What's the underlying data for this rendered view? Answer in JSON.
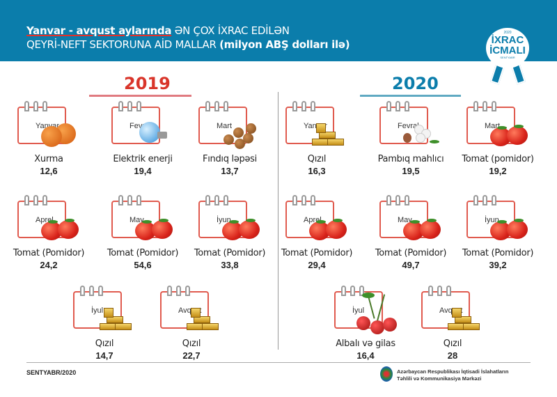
{
  "header": {
    "title_highlight": "Yanvar - avqust  aylarında",
    "title_rest": " ƏN ÇOX İXRAC EDİLƏN",
    "subtitle": "QEYRİ-NEFT SEKTORUNA AİD MALLAR ",
    "subtitle_bold": "(milyon ABŞ dolları ilə)"
  },
  "badge": {
    "year": "2020",
    "line1": "İXRAC",
    "line2": "İCMALI",
    "month": "SENTYABR"
  },
  "colors": {
    "header": "#0b7dab",
    "y2019": "#d9352a",
    "y2020": "#0b7dab"
  },
  "y2019": {
    "label": "2019",
    "items": [
      {
        "month": "Yanvar",
        "product": "Xurma",
        "value": "12,6",
        "icon": "persimmon"
      },
      {
        "month": "Fevral",
        "product": "Elektrik enerji",
        "value": "19,4",
        "icon": "light-bulb"
      },
      {
        "month": "Mart",
        "product": "Fındıq ləpəsi",
        "value": "13,7",
        "icon": "hazelnut"
      },
      {
        "month": "Aprel",
        "product": "Tomat (Pomidor)",
        "value": "24,2",
        "icon": "tomato"
      },
      {
        "month": "May",
        "product": "Tomat (Pomidor)",
        "value": "54,6",
        "icon": "tomato"
      },
      {
        "month": "İyun",
        "product": "Tomat (Pomidor)",
        "value": "33,8",
        "icon": "tomato"
      },
      {
        "month": "İyul",
        "product": "Qızıl",
        "value": "14,7",
        "icon": "gold"
      },
      {
        "month": "Avqust",
        "product": "Qızıl",
        "value": "22,7",
        "icon": "gold"
      }
    ]
  },
  "y2020": {
    "label": "2020",
    "items": [
      {
        "month": "Yanvar",
        "product": "Qızıl",
        "value": "16,3",
        "icon": "gold"
      },
      {
        "month": "Fevral",
        "product": "Pambıq mahlıcı",
        "value": "19,5",
        "icon": "cotton"
      },
      {
        "month": "Mart",
        "product": "Tomat (pomidor)",
        "value": "19,2",
        "icon": "tomato"
      },
      {
        "month": "Aprel",
        "product": "Tomat (Pomidor)",
        "value": "29,4",
        "icon": "tomato"
      },
      {
        "month": "May",
        "product": "Tomat (Pomidor)",
        "value": "49,7",
        "icon": "tomato"
      },
      {
        "month": "İyun",
        "product": "Tomat (Pomidor)",
        "value": "39,2",
        "icon": "tomato"
      },
      {
        "month": "İyul",
        "product": "Albalı və gilas",
        "value": "16,4",
        "icon": "cherry"
      },
      {
        "month": "Avqust",
        "product": "Qızıl",
        "value": "28",
        "icon": "gold"
      }
    ]
  },
  "footer": {
    "date": "SENTYABR/2020",
    "org_line1": "Azərbaycan Respublikası İqtisadi İslahatların",
    "org_line2": "Təhlili və Kommunikasiya Mərkəzi"
  }
}
